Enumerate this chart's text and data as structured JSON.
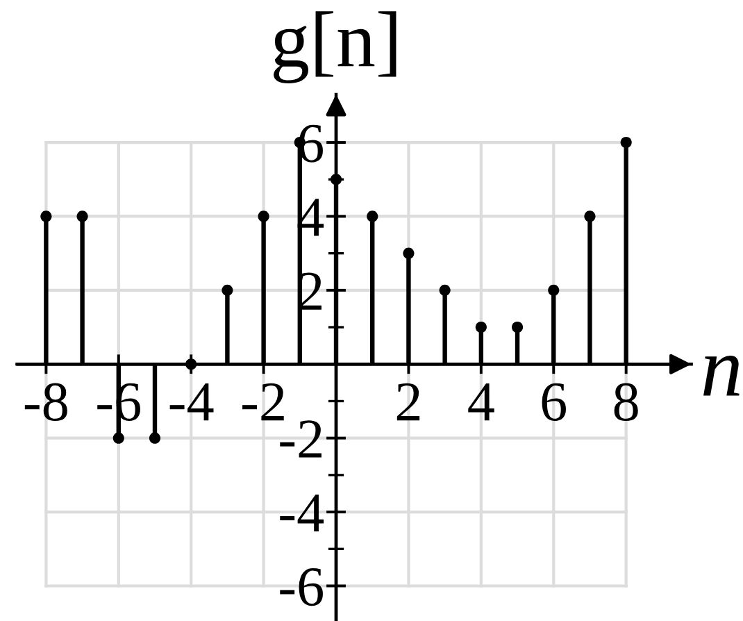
{
  "chart_data": {
    "type": "lollipop",
    "xlabel": "n",
    "ylabel": "g[n]",
    "x": [
      -8,
      -7,
      -6,
      -5,
      -4,
      -3,
      -2,
      -1,
      0,
      1,
      2,
      3,
      4,
      5,
      6,
      7,
      8
    ],
    "values": [
      4,
      4,
      -2,
      -2,
      0,
      2,
      4,
      6,
      5,
      4,
      3,
      2,
      1,
      1,
      2,
      4,
      6
    ],
    "color": "#000000",
    "marker": "circle",
    "xlim": [
      -8.8,
      9.8
    ],
    "ylim": [
      -6.95,
      7.3
    ],
    "xticks": [
      -8,
      -6,
      -4,
      -2,
      2,
      4,
      6,
      8
    ],
    "yticks": [
      -6,
      {
        "value": -5,
        "label": null
      },
      -4,
      {
        "value": -3,
        "label": null
      },
      -2,
      {
        "value": -1,
        "label": null
      },
      {
        "value": 1,
        "label": null
      },
      2,
      {
        "value": 3,
        "label": null
      },
      4,
      {
        "value": 5,
        "label": null
      },
      6
    ],
    "grid": true
  }
}
